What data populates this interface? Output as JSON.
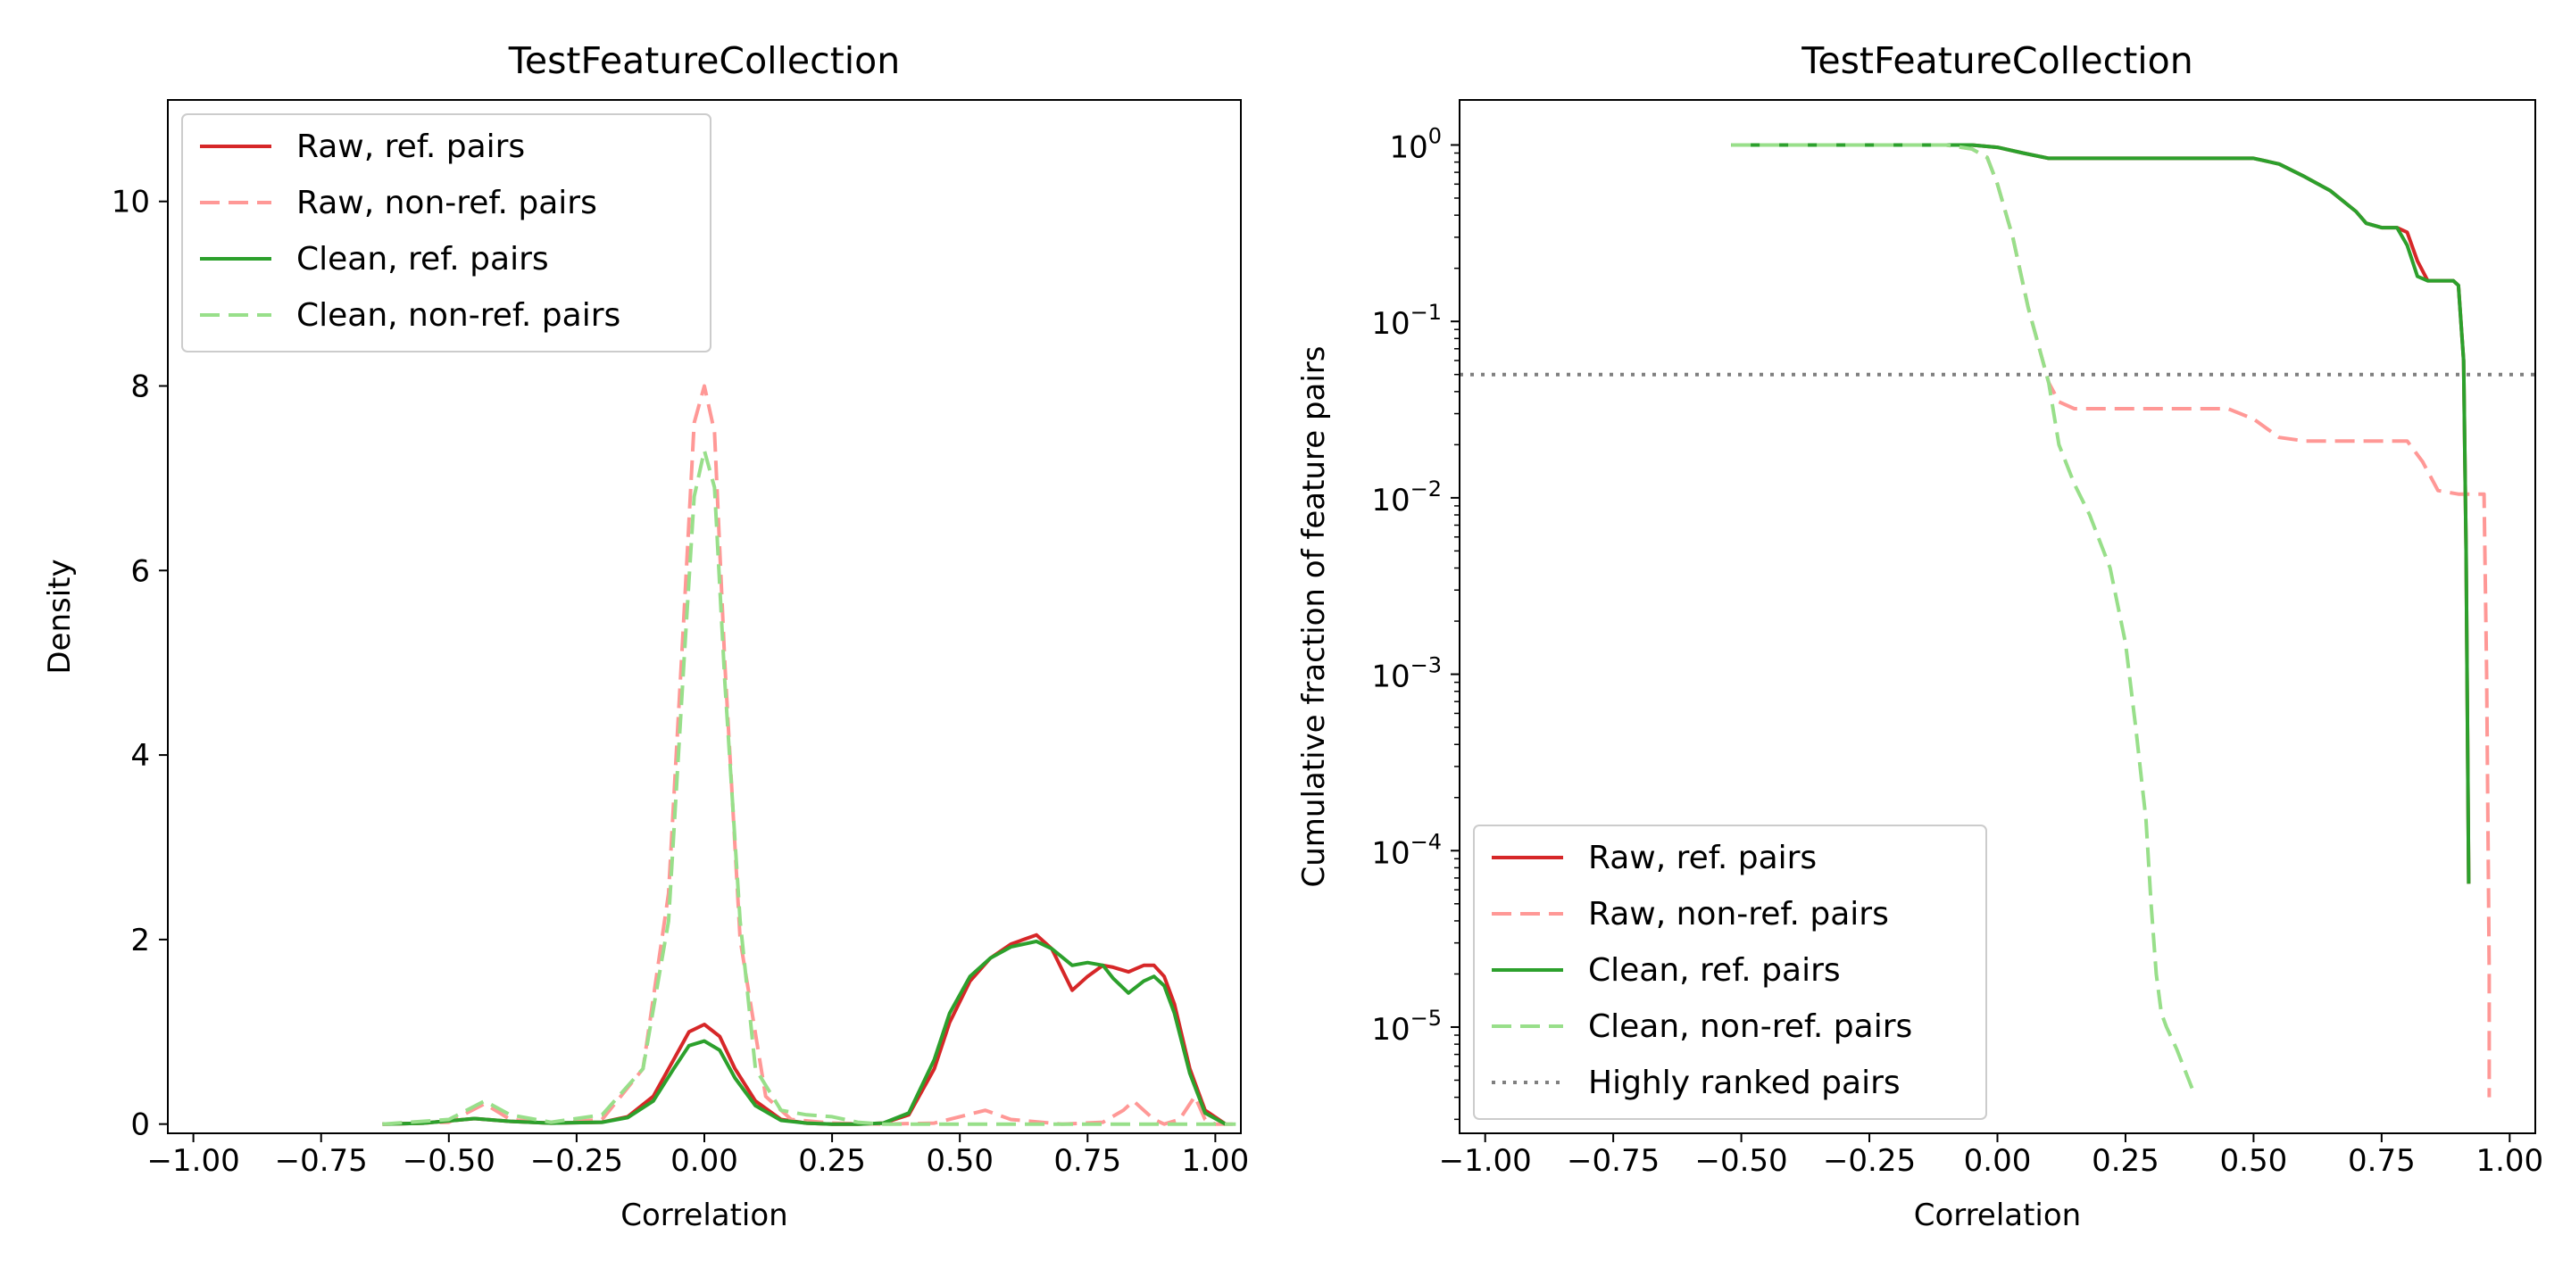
{
  "chart_data": [
    {
      "type": "line",
      "title": "TestFeatureCollection",
      "xlabel": "Correlation",
      "ylabel": "Density",
      "xlim": [
        -1.05,
        1.05
      ],
      "ylim": [
        -0.1,
        11.1
      ],
      "x_ticks": [
        {
          "value": -1.0,
          "label": "−1.00"
        },
        {
          "value": -0.75,
          "label": "−0.75"
        },
        {
          "value": -0.5,
          "label": "−0.50"
        },
        {
          "value": -0.25,
          "label": "−0.25"
        },
        {
          "value": 0.0,
          "label": "0.00"
        },
        {
          "value": 0.25,
          "label": "0.25"
        },
        {
          "value": 0.5,
          "label": "0.50"
        },
        {
          "value": 0.75,
          "label": "0.75"
        },
        {
          "value": 1.0,
          "label": "1.00"
        }
      ],
      "y_ticks": [
        {
          "value": 0,
          "label": "0"
        },
        {
          "value": 2,
          "label": "2"
        },
        {
          "value": 4,
          "label": "4"
        },
        {
          "value": 6,
          "label": "6"
        },
        {
          "value": 8,
          "label": "8"
        },
        {
          "value": 10,
          "label": "10"
        }
      ],
      "legend": "top-left",
      "grid": false,
      "series": [
        {
          "name": "Raw, ref. pairs",
          "color": "#d62728",
          "dash": "solid",
          "x": [
            -0.63,
            -0.55,
            -0.45,
            -0.38,
            -0.3,
            -0.2,
            -0.15,
            -0.1,
            -0.06,
            -0.03,
            0.0,
            0.03,
            0.06,
            0.1,
            0.15,
            0.2,
            0.25,
            0.3,
            0.35,
            0.4,
            0.45,
            0.48,
            0.52,
            0.56,
            0.6,
            0.65,
            0.68,
            0.72,
            0.75,
            0.78,
            0.8,
            0.83,
            0.86,
            0.88,
            0.9,
            0.92,
            0.95,
            0.98,
            1.02
          ],
          "y": [
            0,
            0.01,
            0.06,
            0.03,
            0.01,
            0.02,
            0.08,
            0.3,
            0.7,
            1.0,
            1.08,
            0.95,
            0.6,
            0.25,
            0.05,
            0.01,
            0,
            0,
            0.01,
            0.1,
            0.6,
            1.1,
            1.55,
            1.8,
            1.95,
            2.05,
            1.9,
            1.45,
            1.6,
            1.72,
            1.7,
            1.65,
            1.72,
            1.72,
            1.6,
            1.3,
            0.6,
            0.15,
            0
          ]
        },
        {
          "name": "Raw, non-ref. pairs",
          "color": "#ff9896",
          "dash": "dashed",
          "x": [
            -0.63,
            -0.5,
            -0.43,
            -0.38,
            -0.3,
            -0.2,
            -0.12,
            -0.07,
            -0.04,
            -0.02,
            0.0,
            0.02,
            0.04,
            0.07,
            0.12,
            0.17,
            0.25,
            0.35,
            0.45,
            0.5,
            0.55,
            0.6,
            0.7,
            0.78,
            0.82,
            0.84,
            0.86,
            0.88,
            0.9,
            0.93,
            0.96,
            0.98,
            1.0,
            1.02,
            1.04
          ],
          "y": [
            0,
            0.02,
            0.22,
            0.05,
            0.01,
            0.05,
            0.6,
            2.5,
            5.5,
            7.6,
            8.0,
            7.5,
            5.0,
            2.0,
            0.3,
            0.05,
            0.01,
            0,
            0.01,
            0.08,
            0.15,
            0.05,
            0,
            0.02,
            0.15,
            0.25,
            0.15,
            0.05,
            0,
            0.05,
            0.3,
            0.05,
            0,
            0,
            0
          ]
        },
        {
          "name": "Clean, ref. pairs",
          "color": "#2ca02c",
          "dash": "solid",
          "x": [
            -0.63,
            -0.55,
            -0.45,
            -0.38,
            -0.3,
            -0.2,
            -0.15,
            -0.1,
            -0.06,
            -0.03,
            0.0,
            0.03,
            0.06,
            0.1,
            0.15,
            0.2,
            0.25,
            0.3,
            0.35,
            0.4,
            0.45,
            0.48,
            0.52,
            0.56,
            0.6,
            0.65,
            0.68,
            0.72,
            0.75,
            0.78,
            0.8,
            0.83,
            0.86,
            0.88,
            0.9,
            0.92,
            0.95,
            0.98,
            1.02
          ],
          "y": [
            0,
            0.01,
            0.06,
            0.03,
            0.01,
            0.02,
            0.07,
            0.25,
            0.6,
            0.85,
            0.9,
            0.8,
            0.5,
            0.2,
            0.04,
            0.01,
            0,
            0,
            0.01,
            0.12,
            0.7,
            1.2,
            1.6,
            1.8,
            1.92,
            1.98,
            1.9,
            1.72,
            1.75,
            1.72,
            1.58,
            1.42,
            1.55,
            1.6,
            1.5,
            1.2,
            0.55,
            0.12,
            0
          ]
        },
        {
          "name": "Clean, non-ref. pairs",
          "color": "#98df8a",
          "dash": "dashed",
          "x": [
            -0.63,
            -0.5,
            -0.43,
            -0.38,
            -0.3,
            -0.2,
            -0.12,
            -0.07,
            -0.04,
            -0.02,
            0.0,
            0.02,
            0.04,
            0.07,
            0.1,
            0.15,
            0.2,
            0.25,
            0.3,
            0.35,
            0.45,
            0.55,
            0.65,
            0.75,
            0.85,
            0.95,
            1.04
          ],
          "y": [
            0,
            0.05,
            0.25,
            0.1,
            0.02,
            0.1,
            0.6,
            2.2,
            5.0,
            6.8,
            7.3,
            6.9,
            4.8,
            2.2,
            0.6,
            0.15,
            0.1,
            0.08,
            0.02,
            0,
            0,
            0,
            0,
            0,
            0,
            0,
            0
          ]
        }
      ]
    },
    {
      "type": "line",
      "title": "TestFeatureCollection",
      "xlabel": "Correlation",
      "ylabel": "Cumulative fraction of feature pairs",
      "y_scale": "log",
      "xlim": [
        -1.05,
        1.05
      ],
      "ylim": [
        2.5e-06,
        1.8
      ],
      "x_ticks": [
        {
          "value": -1.0,
          "label": "−1.00"
        },
        {
          "value": -0.75,
          "label": "−0.75"
        },
        {
          "value": -0.5,
          "label": "−0.50"
        },
        {
          "value": -0.25,
          "label": "−0.25"
        },
        {
          "value": 0.0,
          "label": "0.00"
        },
        {
          "value": 0.25,
          "label": "0.25"
        },
        {
          "value": 0.5,
          "label": "0.50"
        },
        {
          "value": 0.75,
          "label": "0.75"
        },
        {
          "value": 1.0,
          "label": "1.00"
        }
      ],
      "y_ticks": [
        {
          "value": 1,
          "base": "10",
          "exp": "0"
        },
        {
          "value": 0.1,
          "base": "10",
          "exp": "−1"
        },
        {
          "value": 0.01,
          "base": "10",
          "exp": "−2"
        },
        {
          "value": 0.001,
          "base": "10",
          "exp": "−3"
        },
        {
          "value": 0.0001,
          "base": "10",
          "exp": "−4"
        },
        {
          "value": 1e-05,
          "base": "10",
          "exp": "−5"
        }
      ],
      "legend": "bottom-left",
      "grid": false,
      "series": [
        {
          "name": "Raw, ref. pairs",
          "color": "#d62728",
          "dash": "solid",
          "x": [
            -0.52,
            -0.1,
            -0.05,
            0.0,
            0.05,
            0.1,
            0.4,
            0.5,
            0.55,
            0.6,
            0.65,
            0.7,
            0.72,
            0.75,
            0.78,
            0.8,
            0.82,
            0.84,
            0.86,
            0.88,
            0.89,
            0.9,
            0.91,
            0.915,
            0.92
          ],
          "y": [
            1.0,
            1.0,
            1.0,
            0.97,
            0.9,
            0.84,
            0.84,
            0.84,
            0.78,
            0.66,
            0.55,
            0.42,
            0.36,
            0.34,
            0.34,
            0.32,
            0.22,
            0.17,
            0.17,
            0.17,
            0.17,
            0.16,
            0.06,
            0.005,
            6.5e-05
          ]
        },
        {
          "name": "Raw, non-ref. pairs",
          "color": "#ff9896",
          "dash": "dashed",
          "x": [
            -0.52,
            -0.1,
            -0.05,
            -0.02,
            0.0,
            0.03,
            0.06,
            0.1,
            0.12,
            0.15,
            0.45,
            0.5,
            0.55,
            0.6,
            0.8,
            0.83,
            0.86,
            0.9,
            0.94,
            0.95,
            0.955,
            0.96,
            0.96
          ],
          "y": [
            1.0,
            1.0,
            0.95,
            0.85,
            0.6,
            0.3,
            0.12,
            0.045,
            0.035,
            0.032,
            0.032,
            0.028,
            0.022,
            0.021,
            0.021,
            0.016,
            0.011,
            0.0105,
            0.0105,
            0.0105,
            0.001,
            2e-05,
            4e-06
          ]
        },
        {
          "name": "Clean, ref. pairs",
          "color": "#2ca02c",
          "dash": "solid",
          "x": [
            -0.52,
            -0.1,
            -0.05,
            0.0,
            0.05,
            0.1,
            0.4,
            0.5,
            0.55,
            0.6,
            0.65,
            0.7,
            0.72,
            0.75,
            0.78,
            0.8,
            0.82,
            0.84,
            0.86,
            0.88,
            0.89,
            0.9,
            0.91,
            0.915,
            0.92
          ],
          "y": [
            1.0,
            1.0,
            1.0,
            0.97,
            0.9,
            0.84,
            0.84,
            0.84,
            0.78,
            0.66,
            0.55,
            0.42,
            0.36,
            0.34,
            0.34,
            0.27,
            0.18,
            0.17,
            0.17,
            0.17,
            0.17,
            0.16,
            0.06,
            0.005,
            6.5e-05
          ]
        },
        {
          "name": "Clean, non-ref. pairs",
          "color": "#98df8a",
          "dash": "dashed",
          "x": [
            -0.52,
            -0.1,
            -0.05,
            -0.02,
            0.0,
            0.03,
            0.06,
            0.1,
            0.12,
            0.15,
            0.18,
            0.22,
            0.25,
            0.27,
            0.29,
            0.3,
            0.31,
            0.32,
            0.33,
            0.35,
            0.38
          ],
          "y": [
            1.0,
            1.0,
            0.95,
            0.85,
            0.6,
            0.3,
            0.12,
            0.045,
            0.02,
            0.012,
            0.008,
            0.004,
            0.0015,
            0.0005,
            0.00015,
            5e-05,
            2e-05,
            1.2e-05,
            1e-05,
            7.5e-06,
            4.5e-06
          ]
        },
        {
          "name": "Highly ranked pairs",
          "color": "#7f7f7f",
          "dash": "dotted",
          "x": [
            -1.05,
            1.05
          ],
          "y": [
            0.05,
            0.05
          ]
        }
      ]
    }
  ]
}
